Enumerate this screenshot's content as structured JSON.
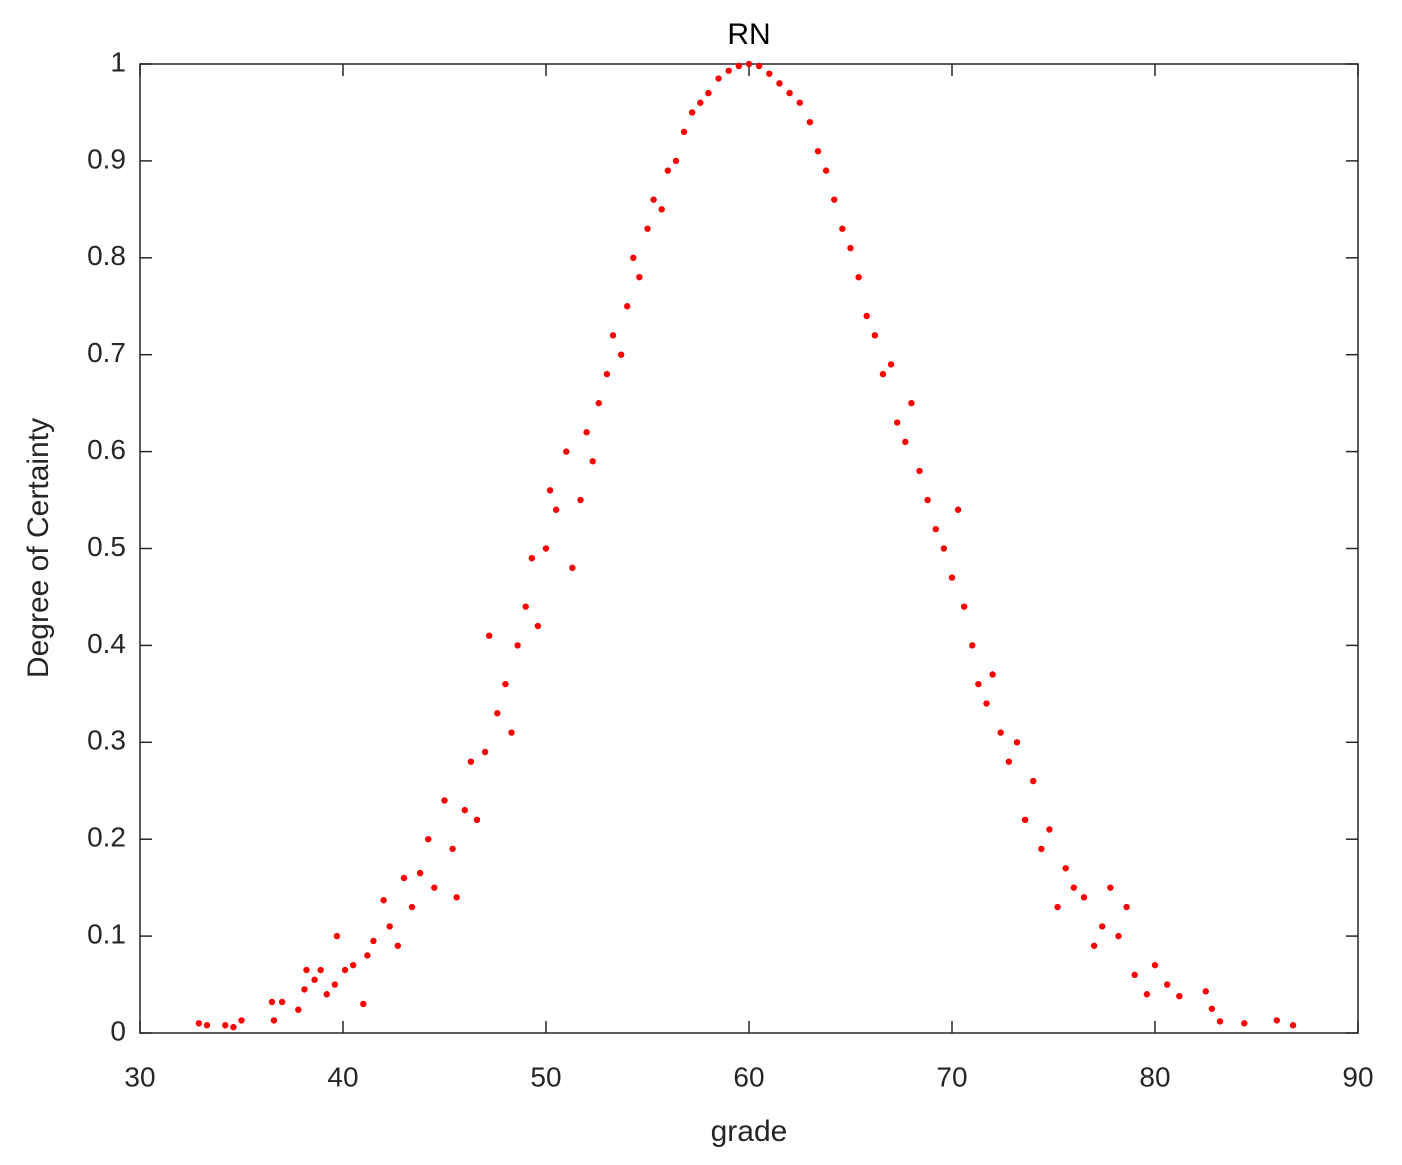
{
  "chart_data": {
    "type": "scatter",
    "title": "RN",
    "xlabel": "grade",
    "ylabel": "Degree of Certainty",
    "color": "#ff0000",
    "x": [
      32.9,
      33.3,
      34.2,
      34.6,
      35,
      36.5,
      36.6,
      37,
      37.8,
      38.1,
      38.2,
      38.6,
      38.9,
      39.2,
      39.6,
      39.7,
      40.1,
      40.5,
      41,
      41.2,
      41.5,
      42,
      42.3,
      42.7,
      43,
      43.4,
      43.8,
      44.2,
      44.5,
      45,
      45.4,
      45.6,
      46,
      46.3,
      46.6,
      47,
      47.2,
      47.6,
      48,
      48.3,
      48.6,
      49,
      49.3,
      49.6,
      50,
      50.2,
      50.5,
      51,
      51.3,
      51.7,
      52,
      52.3,
      52.6,
      53,
      53.3,
      53.7,
      54,
      54.3,
      54.6,
      55,
      55.3,
      55.7,
      56,
      56.4,
      56.8,
      57.2,
      57.6,
      58,
      58.5,
      59,
      59.5,
      60,
      60.5,
      61,
      61.5,
      62,
      62.5,
      63,
      63.4,
      63.8,
      64.2,
      64.6,
      65,
      65.4,
      65.8,
      66.2,
      66.6,
      67,
      67.3,
      67.7,
      68,
      68.4,
      68.8,
      69.2,
      69.6,
      70,
      70.3,
      70.6,
      71,
      71.3,
      71.7,
      72,
      72.4,
      72.8,
      73.2,
      73.6,
      74,
      74.4,
      74.8,
      75.2,
      75.6,
      76,
      76.5,
      77,
      77.4,
      77.8,
      78.2,
      78.6,
      79,
      79.6,
      80,
      80.6,
      81.2,
      82.5,
      82.8,
      83.2,
      84.4,
      86,
      86.8
    ],
    "values": [
      0.01,
      0.008,
      0.008,
      0.006,
      0.013,
      0.032,
      0.013,
      0.032,
      0.024,
      0.045,
      0.065,
      0.055,
      0.065,
      0.04,
      0.05,
      0.1,
      0.065,
      0.07,
      0.03,
      0.08,
      0.095,
      0.137,
      0.11,
      0.09,
      0.16,
      0.13,
      0.165,
      0.2,
      0.15,
      0.24,
      0.19,
      0.14,
      0.23,
      0.28,
      0.22,
      0.29,
      0.41,
      0.33,
      0.36,
      0.31,
      0.4,
      0.44,
      0.49,
      0.42,
      0.5,
      0.56,
      0.54,
      0.6,
      0.48,
      0.55,
      0.62,
      0.59,
      0.65,
      0.68,
      0.72,
      0.7,
      0.75,
      0.8,
      0.78,
      0.83,
      0.86,
      0.85,
      0.89,
      0.9,
      0.93,
      0.95,
      0.96,
      0.97,
      0.985,
      0.993,
      0.998,
      1,
      0.998,
      0.99,
      0.98,
      0.97,
      0.96,
      0.94,
      0.91,
      0.89,
      0.86,
      0.83,
      0.81,
      0.78,
      0.74,
      0.72,
      0.68,
      0.69,
      0.63,
      0.61,
      0.65,
      0.58,
      0.55,
      0.52,
      0.5,
      0.47,
      0.54,
      0.44,
      0.4,
      0.36,
      0.34,
      0.37,
      0.31,
      0.28,
      0.3,
      0.22,
      0.26,
      0.19,
      0.21,
      0.13,
      0.17,
      0.15,
      0.14,
      0.09,
      0.11,
      0.15,
      0.1,
      0.13,
      0.06,
      0.04,
      0.07,
      0.05,
      0.038,
      0.043,
      0.025,
      0.012,
      0.01,
      0.013,
      0.008
    ],
    "xlim": [
      30,
      90
    ],
    "xticks": [
      30,
      40,
      50,
      60,
      70,
      80,
      90
    ],
    "ylim": [
      0,
      1
    ],
    "yticks": [
      0,
      0.1,
      0.2,
      0.3,
      0.4,
      0.5,
      0.6,
      0.7,
      0.8,
      0.9,
      1
    ]
  }
}
